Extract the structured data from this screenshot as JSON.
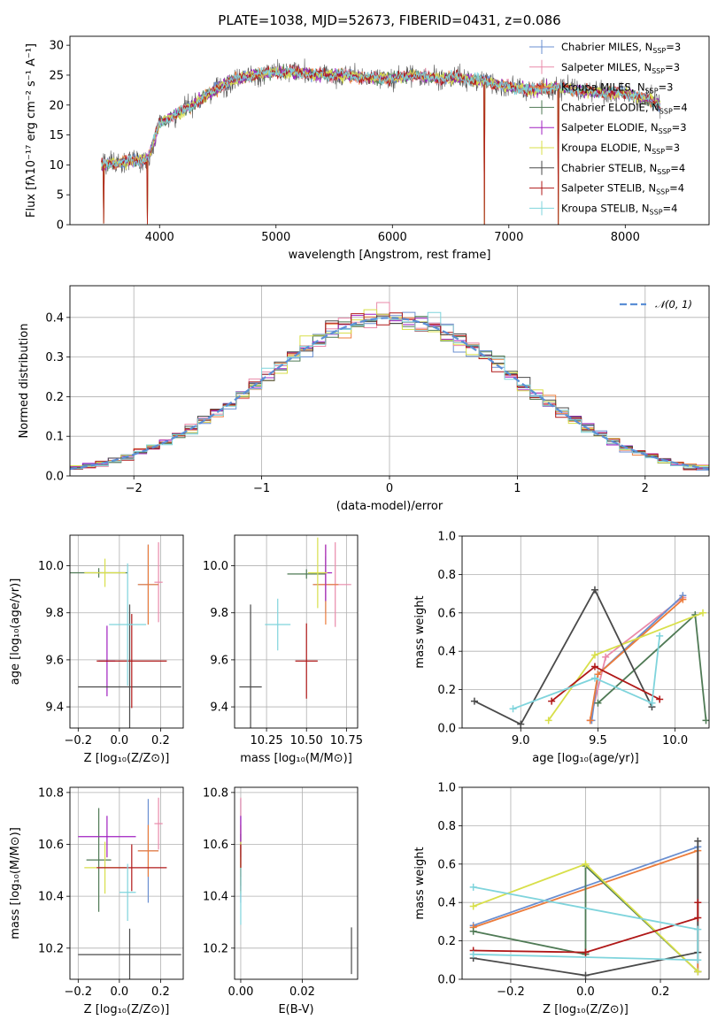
{
  "figure": {
    "title": "PLATE=1038, MJD=52673, FIBERID=0431, z=0.086"
  },
  "legend_spec": {
    "entries": [
      {
        "label": "Chabrier MILES, N",
        "sub": "SSP",
        "val": "=3",
        "color": "#6a8fd0"
      },
      {
        "label": "Salpeter MILES, N",
        "sub": "SSP",
        "val": "=3",
        "color": "#e98aaa"
      },
      {
        "label": "Kroupa MILES, N",
        "sub": "SSP",
        "val": "=3",
        "color": "#ec7c3c"
      },
      {
        "label": "Chabrier ELODIE, N",
        "sub": "SSP",
        "val": "=4",
        "color": "#4f7a55"
      },
      {
        "label": "Salpeter ELODIE, N",
        "sub": "SSP",
        "val": "=3",
        "color": "#a020c0"
      },
      {
        "label": "Kroupa ELODIE, N",
        "sub": "SSP",
        "val": "=3",
        "color": "#d8df4a"
      },
      {
        "label": "Chabrier STELIB, N",
        "sub": "SSP",
        "val": "=4",
        "color": "#4a4a4a"
      },
      {
        "label": "Salpeter STELIB, N",
        "sub": "SSP",
        "val": "=4",
        "color": "#b01818"
      },
      {
        "label": "Kroupa STELIB, N",
        "sub": "SSP",
        "val": "=4",
        "color": "#7fd4dc"
      }
    ]
  },
  "chart_data": [
    {
      "type": "line",
      "id": "spectrum",
      "xlabel": "wavelength [Angstrom, rest frame]",
      "ylabel": "Flux [fλ10⁻¹⁷ erg cm⁻² s⁻¹ A⁻¹]",
      "xlim": [
        3230,
        8720
      ],
      "ylim": [
        0,
        31.5
      ],
      "xticks": [
        4000,
        5000,
        6000,
        7000,
        8000
      ],
      "yticks": [
        0,
        5,
        10,
        15,
        20,
        25,
        30
      ],
      "continuum": {
        "x": [
          3500,
          3700,
          3900,
          4000,
          4200,
          4400,
          4600,
          4800,
          5000,
          5200,
          5400,
          5600,
          5800,
          6000,
          6200,
          6400,
          6600,
          6800,
          7000,
          7200,
          7400,
          7600,
          7800,
          8000,
          8200,
          8300
        ],
        "y": [
          10,
          10.5,
          11,
          17,
          19,
          21.5,
          24,
          25,
          25.5,
          25.5,
          25,
          25,
          24.5,
          24.5,
          25,
          24.5,
          24.5,
          24,
          23,
          22.5,
          23,
          22.5,
          22,
          22,
          21,
          20
        ]
      },
      "dips": [
        {
          "x": 3520,
          "y": 0.2
        },
        {
          "x": 3895,
          "y": 0.1
        },
        {
          "x": 6790,
          "y": 0.0
        },
        {
          "x": 7425,
          "y": 0.0
        }
      ],
      "legend": "top-right"
    },
    {
      "type": "step",
      "id": "residual_hist",
      "xlabel": "(data-model)/error",
      "ylabel": "Normed distribution",
      "xlim": [
        -2.5,
        2.5
      ],
      "ylim": [
        0,
        0.48
      ],
      "xticks": [
        -2,
        -1,
        0,
        1,
        2
      ],
      "yticks": [
        0.0,
        0.1,
        0.2,
        0.3,
        0.4
      ],
      "bin_width": 0.1,
      "curve_label": "𝒩(0, 1)",
      "curve_color": "#5b8fd6",
      "legend": "top-right",
      "grid": true
    },
    {
      "type": "errorbar",
      "id": "z_vs_age",
      "xlabel": "Z [log₁₀(Z/Z⊙)]",
      "ylabel": "age  [log₁₀(age/yr)]",
      "xlim": [
        -0.24,
        0.31
      ],
      "ylim": [
        9.31,
        10.13
      ],
      "xticks": [
        -0.2,
        0.0,
        0.2
      ],
      "yticks": [
        9.4,
        9.6,
        9.8,
        10.0
      ],
      "points": [
        {
          "x": 0.14,
          "xerr": 0.05,
          "y": 9.92,
          "yerr": 0.17,
          "color": "#6a8fd0"
        },
        {
          "x": 0.19,
          "xerr": 0.02,
          "y": 9.93,
          "yerr": 0.17,
          "color": "#e98aaa"
        },
        {
          "x": 0.14,
          "xerr": 0.05,
          "y": 9.92,
          "yerr": 0.17,
          "color": "#ec7c3c"
        },
        {
          "x": -0.1,
          "xerr": 0.14,
          "y": 9.97,
          "yerr": 0.02,
          "color": "#4f7a55"
        },
        {
          "x": -0.06,
          "xerr": 0.04,
          "y": 9.595,
          "yerr": 0.15,
          "color": "#a020c0"
        },
        {
          "x": -0.07,
          "xerr": 0.1,
          "y": 9.97,
          "yerr": 0.06,
          "color": "#d8df4a"
        },
        {
          "x": 0.05,
          "xerr": 0.25,
          "y": 9.485,
          "yerr": 0.35,
          "color": "#4a4a4a"
        },
        {
          "x": 0.06,
          "xerr": 0.17,
          "y": 9.595,
          "yerr": 0.2,
          "color": "#b01818"
        },
        {
          "x": 0.04,
          "xerr": 0.09,
          "y": 9.75,
          "yerr": 0.26,
          "color": "#7fd4dc"
        }
      ]
    },
    {
      "type": "errorbar",
      "id": "mass_vs_age",
      "xlabel": "mass [log₁₀(M/M⊙)]",
      "ylabel": "",
      "xlim": [
        10.05,
        10.82
      ],
      "ylim": [
        9.31,
        10.13
      ],
      "xticks": [
        10.25,
        10.5,
        10.75
      ],
      "yticks": [
        9.4,
        9.6,
        9.8,
        10.0
      ],
      "points": [
        {
          "x": 10.62,
          "xerr": 0.08,
          "y": 9.92,
          "yerr": 0.12,
          "color": "#6a8fd0"
        },
        {
          "x": 10.68,
          "xerr": 0.1,
          "y": 9.92,
          "yerr": 0.18,
          "color": "#e98aaa"
        },
        {
          "x": 10.62,
          "xerr": 0.08,
          "y": 9.92,
          "yerr": 0.17,
          "color": "#ec7c3c"
        },
        {
          "x": 10.5,
          "xerr": 0.12,
          "y": 9.965,
          "yerr": 0.02,
          "color": "#4f7a55"
        },
        {
          "x": 10.62,
          "xerr": 0.04,
          "y": 9.97,
          "yerr": 0.12,
          "color": "#a020c0"
        },
        {
          "x": 10.57,
          "xerr": 0.06,
          "y": 9.97,
          "yerr": 0.15,
          "color": "#d8df4a"
        },
        {
          "x": 10.15,
          "xerr": 0.07,
          "y": 9.485,
          "yerr": 0.35,
          "color": "#4a4a4a"
        },
        {
          "x": 10.5,
          "xerr": 0.07,
          "y": 9.595,
          "yerr": 0.16,
          "color": "#b01818"
        },
        {
          "x": 10.32,
          "xerr": 0.08,
          "y": 9.75,
          "yerr": 0.11,
          "color": "#7fd4dc"
        }
      ]
    },
    {
      "type": "line",
      "id": "age_vs_weight",
      "xlabel": "age  [log₁₀(age/yr)]",
      "ylabel": "mass weight",
      "xlim": [
        8.62,
        10.22
      ],
      "ylim": [
        0,
        1.0
      ],
      "xticks": [
        9.0,
        9.5,
        10.0
      ],
      "yticks": [
        0.0,
        0.2,
        0.4,
        0.6,
        0.8,
        1.0
      ],
      "series": [
        {
          "color": "#e98aaa",
          "points": [
            [
              9.45,
              0.04
            ],
            [
              9.55,
              0.37
            ],
            [
              10.05,
              0.68
            ]
          ]
        },
        {
          "color": "#6a8fd0",
          "points": [
            [
              9.46,
              0.04
            ],
            [
              9.5,
              0.28
            ],
            [
              10.05,
              0.69
            ]
          ]
        },
        {
          "color": "#ec7c3c",
          "points": [
            [
              9.45,
              0.04
            ],
            [
              9.5,
              0.28
            ],
            [
              10.05,
              0.67
            ]
          ]
        },
        {
          "color": "#4f7a55",
          "points": [
            [
              9.5,
              0.13
            ],
            [
              10.13,
              0.59
            ],
            [
              10.2,
              0.04
            ]
          ]
        },
        {
          "color": "#d8df4a",
          "points": [
            [
              9.18,
              0.04
            ],
            [
              9.48,
              0.38
            ],
            [
              10.18,
              0.6
            ]
          ]
        },
        {
          "color": "#4a4a4a",
          "points": [
            [
              8.7,
              0.14
            ],
            [
              9.0,
              0.02
            ],
            [
              9.48,
              0.72
            ],
            [
              9.85,
              0.11
            ]
          ]
        },
        {
          "color": "#b01818",
          "points": [
            [
              9.2,
              0.14
            ],
            [
              9.48,
              0.32
            ],
            [
              9.9,
              0.15
            ]
          ]
        },
        {
          "color": "#7fd4dc",
          "points": [
            [
              8.95,
              0.1
            ],
            [
              9.48,
              0.26
            ],
            [
              9.85,
              0.13
            ],
            [
              9.9,
              0.48
            ]
          ]
        }
      ]
    },
    {
      "type": "errorbar",
      "id": "z_vs_mass",
      "xlabel": "Z [log₁₀(Z/Z⊙)]",
      "ylabel": "mass [log₁₀(M/M⊙)]",
      "xlim": [
        -0.24,
        0.31
      ],
      "ylim": [
        10.08,
        10.82
      ],
      "xticks": [
        -0.2,
        0.0,
        0.2
      ],
      "yticks": [
        10.2,
        10.4,
        10.6,
        10.8
      ],
      "points": [
        {
          "x": 0.14,
          "xerr": 0.05,
          "y": 10.575,
          "yerr": 0.2,
          "color": "#6a8fd0"
        },
        {
          "x": 0.19,
          "xerr": 0.02,
          "y": 10.68,
          "yerr": 0.1,
          "color": "#e98aaa"
        },
        {
          "x": 0.14,
          "xerr": 0.05,
          "y": 10.575,
          "yerr": 0.1,
          "color": "#ec7c3c"
        },
        {
          "x": -0.1,
          "xerr": 0.06,
          "y": 10.54,
          "yerr": 0.2,
          "color": "#4f7a55"
        },
        {
          "x": -0.06,
          "xerr": 0.14,
          "y": 10.63,
          "yerr": 0.08,
          "color": "#a020c0"
        },
        {
          "x": -0.07,
          "xerr": 0.1,
          "y": 10.51,
          "yerr": 0.1,
          "color": "#d8df4a"
        },
        {
          "x": 0.05,
          "xerr": 0.25,
          "y": 10.175,
          "yerr": 0.1,
          "color": "#4a4a4a"
        },
        {
          "x": 0.06,
          "xerr": 0.17,
          "y": 10.51,
          "yerr": 0.09,
          "color": "#b01818"
        },
        {
          "x": 0.04,
          "xerr": 0.04,
          "y": 10.415,
          "yerr": 0.11,
          "color": "#7fd4dc"
        }
      ]
    },
    {
      "type": "errorbar",
      "id": "ebv_vs_mass",
      "xlabel": "E(B-V)",
      "ylabel": "",
      "xlim": [
        -0.002,
        0.038
      ],
      "ylim": [
        10.08,
        10.82
      ],
      "xticks": [
        0.0,
        0.02
      ],
      "yticks": [
        10.2,
        10.4,
        10.6,
        10.8
      ],
      "points": [
        {
          "x": 0.0,
          "xerr": 0.0,
          "y": 10.575,
          "yerr": 0.2,
          "color": "#6a8fd0"
        },
        {
          "x": 0.0,
          "xerr": 0.0,
          "y": 10.68,
          "yerr": 0.1,
          "color": "#e98aaa"
        },
        {
          "x": 0.0,
          "xerr": 0.0,
          "y": 10.575,
          "yerr": 0.1,
          "color": "#ec7c3c"
        },
        {
          "x": 0.0,
          "xerr": 0.0,
          "y": 10.54,
          "yerr": 0.1,
          "color": "#4f7a55"
        },
        {
          "x": 0.0,
          "xerr": 0.0,
          "y": 10.63,
          "yerr": 0.08,
          "color": "#a020c0"
        },
        {
          "x": 0.0,
          "xerr": 0.0,
          "y": 10.51,
          "yerr": 0.1,
          "color": "#d8df4a"
        },
        {
          "x": 0.036,
          "xerr": 0.0,
          "y": 10.19,
          "yerr": 0.09,
          "color": "#4a4a4a"
        },
        {
          "x": 0.0,
          "xerr": 0.0,
          "y": 10.51,
          "yerr": 0.09,
          "color": "#b01818"
        },
        {
          "x": 0.0,
          "xerr": 0.0,
          "y": 10.4,
          "yerr": 0.11,
          "color": "#7fd4dc"
        }
      ]
    },
    {
      "type": "line",
      "id": "z_vs_weight",
      "xlabel": "Z [log₁₀(Z/Z⊙)]",
      "ylabel": "mass weight",
      "xlim": [
        -0.33,
        0.33
      ],
      "ylim": [
        0,
        1.0
      ],
      "xticks": [
        -0.2,
        0.0,
        0.2
      ],
      "yticks": [
        0.0,
        0.2,
        0.4,
        0.6,
        0.8,
        1.0
      ],
      "series": [
        {
          "color": "#6a8fd0",
          "points": [
            [
              -0.3,
              0.28
            ],
            [
              0.3,
              0.69
            ],
            [
              0.3,
              0.04
            ]
          ]
        },
        {
          "color": "#ec7c3c",
          "points": [
            [
              -0.3,
              0.27
            ],
            [
              0.3,
              0.67
            ],
            [
              0.3,
              0.04
            ]
          ]
        },
        {
          "color": "#4f7a55",
          "points": [
            [
              -0.3,
              0.25
            ],
            [
              0.0,
              0.13
            ],
            [
              0.0,
              0.59
            ],
            [
              0.3,
              0.04
            ]
          ]
        },
        {
          "color": "#d8df4a",
          "points": [
            [
              -0.3,
              0.38
            ],
            [
              0.0,
              0.6
            ],
            [
              0.3,
              0.04
            ]
          ]
        },
        {
          "color": "#4a4a4a",
          "points": [
            [
              -0.3,
              0.11
            ],
            [
              0.0,
              0.02
            ],
            [
              0.3,
              0.14
            ],
            [
              0.3,
              0.72
            ]
          ]
        },
        {
          "color": "#b01818",
          "points": [
            [
              -0.3,
              0.15
            ],
            [
              0.0,
              0.14
            ],
            [
              0.3,
              0.32
            ],
            [
              0.3,
              0.4
            ]
          ]
        },
        {
          "color": "#7fd4dc",
          "points": [
            [
              -0.3,
              0.13
            ],
            [
              0.3,
              0.1
            ],
            [
              0.3,
              0.26
            ],
            [
              -0.3,
              0.48
            ]
          ]
        }
      ]
    }
  ]
}
